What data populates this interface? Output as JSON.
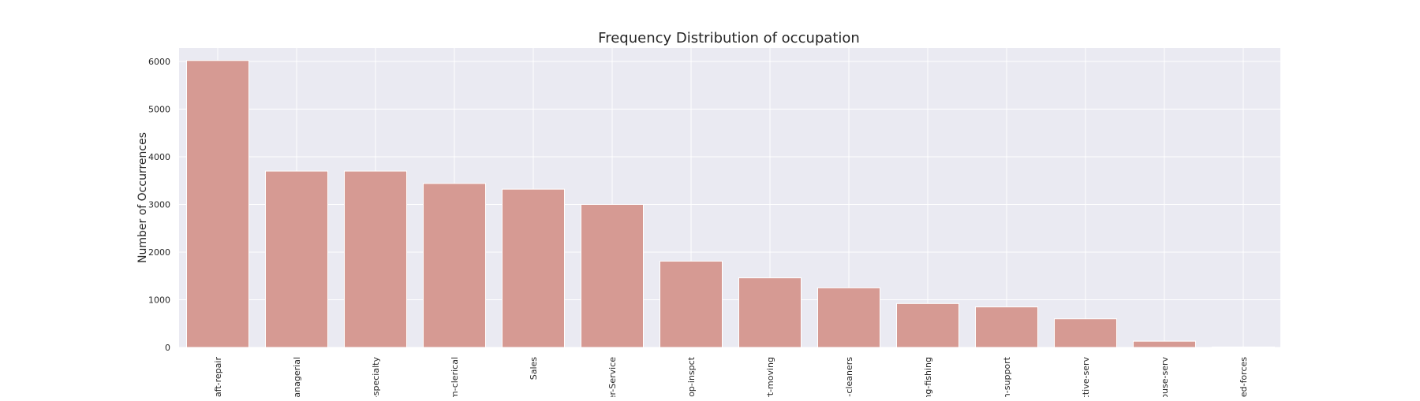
{
  "chart_data": {
    "type": "bar",
    "title": "Frequency Distribution of occupation",
    "xlabel": "",
    "ylabel": "Number of Occurrences",
    "categories": [
      "raft-repair",
      "managerial",
      "-specialty",
      "m-clerical",
      "Sales",
      "er-Service",
      "-op-inspct",
      "ort-moving",
      "-cleaners",
      "ng-fishing",
      "h-support",
      "ctive-serv",
      "ouse-serv",
      "ed-forces"
    ],
    "values": [
      6020,
      3700,
      3700,
      3440,
      3320,
      3000,
      1810,
      1460,
      1250,
      920,
      850,
      600,
      130,
      10
    ],
    "yticks": [
      "0",
      "1000",
      "2000",
      "3000",
      "4000",
      "5000",
      "6000"
    ],
    "ylim": [
      0,
      6300
    ],
    "grid": true,
    "colors": {
      "bar": "#d69a93",
      "plot_background": "#eaeaf2",
      "grid": "#ffffff"
    }
  }
}
